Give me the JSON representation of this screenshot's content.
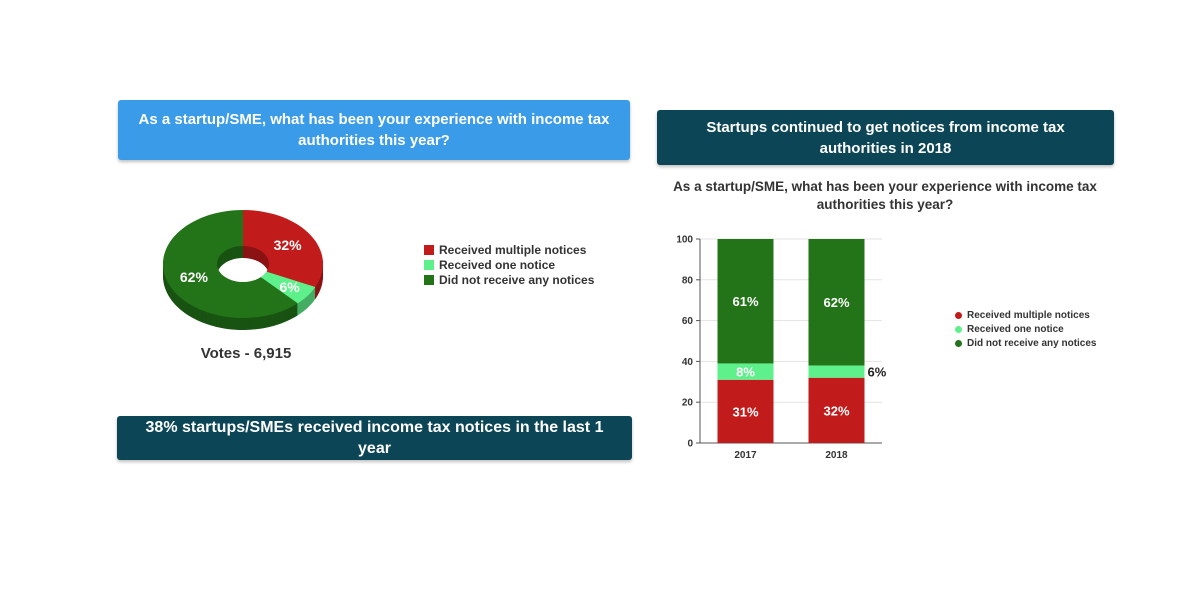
{
  "colors": {
    "banner_light_blue": "#3a9be8",
    "banner_dark_teal": "#0c4656",
    "received_multiple": "#c11b1b",
    "received_one": "#5ef08a",
    "did_not_receive": "#237319"
  },
  "left_panel": {
    "question_banner": "As a startup/SME, what has been your experience with income tax authorities this year?",
    "votes_label": "Votes - 6,915",
    "summary_banner": "38% startups/SMEs received income tax notices in the last 1 year"
  },
  "right_panel": {
    "title_banner": "Startups continued to get notices from income tax authorities in 2018"
  },
  "legend": [
    {
      "label": "Received multiple notices",
      "color": "#c11b1b"
    },
    {
      "label": "Received one notice",
      "color": "#5ef08a"
    },
    {
      "label": "Did not receive any notices",
      "color": "#237319"
    }
  ],
  "chart_data": [
    {
      "type": "pie",
      "title": "",
      "slices": [
        {
          "name": "Received multiple notices",
          "value": 32,
          "label": "32%",
          "color": "#c11b1b"
        },
        {
          "name": "Received one notice",
          "value": 6,
          "label": "6%",
          "color": "#5ef08a"
        },
        {
          "name": "Did not receive any notices",
          "value": 62,
          "label": "62%",
          "color": "#237319"
        }
      ],
      "legend_position": "right"
    },
    {
      "type": "bar",
      "stacked": true,
      "title": "As a startup/SME, what has been your experience with income tax authorities this year?",
      "categories": [
        "2017",
        "2018"
      ],
      "series": [
        {
          "name": "Received multiple notices",
          "values": [
            31,
            32
          ],
          "labels": [
            "31%",
            "32%"
          ],
          "color": "#c11b1b"
        },
        {
          "name": "Received one notice",
          "values": [
            8,
            6
          ],
          "labels": [
            "8%",
            "6%"
          ],
          "color": "#5ef08a"
        },
        {
          "name": "Did not receive any notices",
          "values": [
            61,
            62
          ],
          "labels": [
            "61%",
            "62%"
          ],
          "color": "#237319"
        }
      ],
      "ylim": [
        0,
        100
      ],
      "yticks": [
        "0",
        "20",
        "40",
        "60",
        "80",
        "100"
      ],
      "grid": true,
      "legend_position": "right"
    }
  ]
}
